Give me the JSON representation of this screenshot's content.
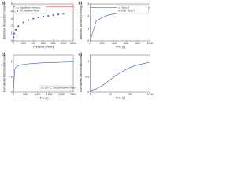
{
  "chart_data": [
    {
      "type": "line",
      "panel": "a)",
      "xlabel": "Pressure [mbar]",
      "ylabel": "Adsorbed Amount [mmol/g]",
      "xlim": [
        0,
        1200
      ],
      "xticks": [
        0,
        200,
        400,
        600,
        800,
        1000,
        1200
      ],
      "ylim": [
        0,
        5
      ],
      "yticks": [
        0,
        1,
        2,
        3,
        4,
        5
      ],
      "grid": false,
      "legend": "upper left",
      "series": [
        {
          "name": "Equilibrium Pressure",
          "color": "#e03030",
          "marker": "none",
          "x": [
            0,
            1200
          ],
          "values": [
            4.6,
            4.6
          ]
        },
        {
          "name": "0°C, Isotherm Point",
          "color": "#2a5cbf",
          "marker": "square",
          "x": [
            5,
            20,
            50,
            100,
            200,
            300,
            400,
            500,
            600,
            700,
            800,
            900,
            1000
          ],
          "values": [
            0.5,
            1.0,
            1.5,
            2.0,
            2.5,
            2.8,
            3.0,
            3.2,
            3.3,
            3.4,
            3.5,
            3.6,
            3.7
          ]
        }
      ]
    },
    {
      "type": "line",
      "panel": "b)",
      "xlabel": "Time [s]",
      "ylabel": "Adsorbed Amount [mmol/g]",
      "xlim": [
        0,
        1000
      ],
      "xticks": [
        0,
        200,
        400,
        600,
        800,
        1000
      ],
      "ylim": [
        0,
        3
      ],
      "yticks": [
        0,
        1,
        2,
        3
      ],
      "grid": false,
      "legend": "upper right",
      "series": [
        {
          "name": "Set to 1",
          "color": "#e03030",
          "marker": "none",
          "x": [
            0,
            1000
          ],
          "values": [
            2.7,
            2.7
          ]
        },
        {
          "name": "Eval. Set to 1",
          "color": "#2a5cbf",
          "marker": "none",
          "x": [
            0,
            100,
            200,
            300,
            400,
            500,
            600,
            700,
            800,
            900,
            1000
          ],
          "values": [
            0,
            1.6,
            1.9,
            2.1,
            2.2,
            2.3,
            2.4,
            2.45,
            2.5,
            2.55,
            2.6
          ]
        }
      ]
    },
    {
      "type": "line",
      "panel": "c)",
      "xlabel": "Time [s]",
      "ylabel": "Normalized Adsorbed Amount",
      "xlim": [
        0,
        2500
      ],
      "xticks": [
        0,
        500,
        1000,
        1500,
        2000,
        2500
      ],
      "ylim": [
        0,
        1.2
      ],
      "yticks": [
        0,
        0.5,
        1
      ],
      "grid": false,
      "legend": "lower right",
      "series": [
        {
          "name": "200 °C, Second Isotherm Point",
          "color": "#2a5cbf",
          "marker": "none",
          "x": [
            0,
            50,
            100,
            200,
            400,
            800,
            1200,
            1600,
            2000,
            2500
          ],
          "values": [
            0,
            0.7,
            0.8,
            0.86,
            0.9,
            0.93,
            0.95,
            0.96,
            0.97,
            0.98
          ]
        }
      ]
    },
    {
      "type": "line",
      "panel": "d)",
      "xlabel": "Time [s]",
      "ylabel": "Normalized Adsorbed Amount",
      "xlog": true,
      "xlim": [
        1,
        1000
      ],
      "xticks": [
        1,
        10,
        100,
        1000
      ],
      "ylim": [
        0,
        1.2
      ],
      "yticks": [
        0,
        0.5,
        1
      ],
      "grid": false,
      "series": [
        {
          "color": "#2a5cbf",
          "marker": "none",
          "x": [
            1,
            2,
            5,
            10,
            20,
            50,
            100,
            200,
            500,
            1000
          ],
          "values": [
            0.05,
            0.1,
            0.25,
            0.4,
            0.55,
            0.7,
            0.8,
            0.87,
            0.93,
            0.97
          ]
        }
      ]
    }
  ]
}
